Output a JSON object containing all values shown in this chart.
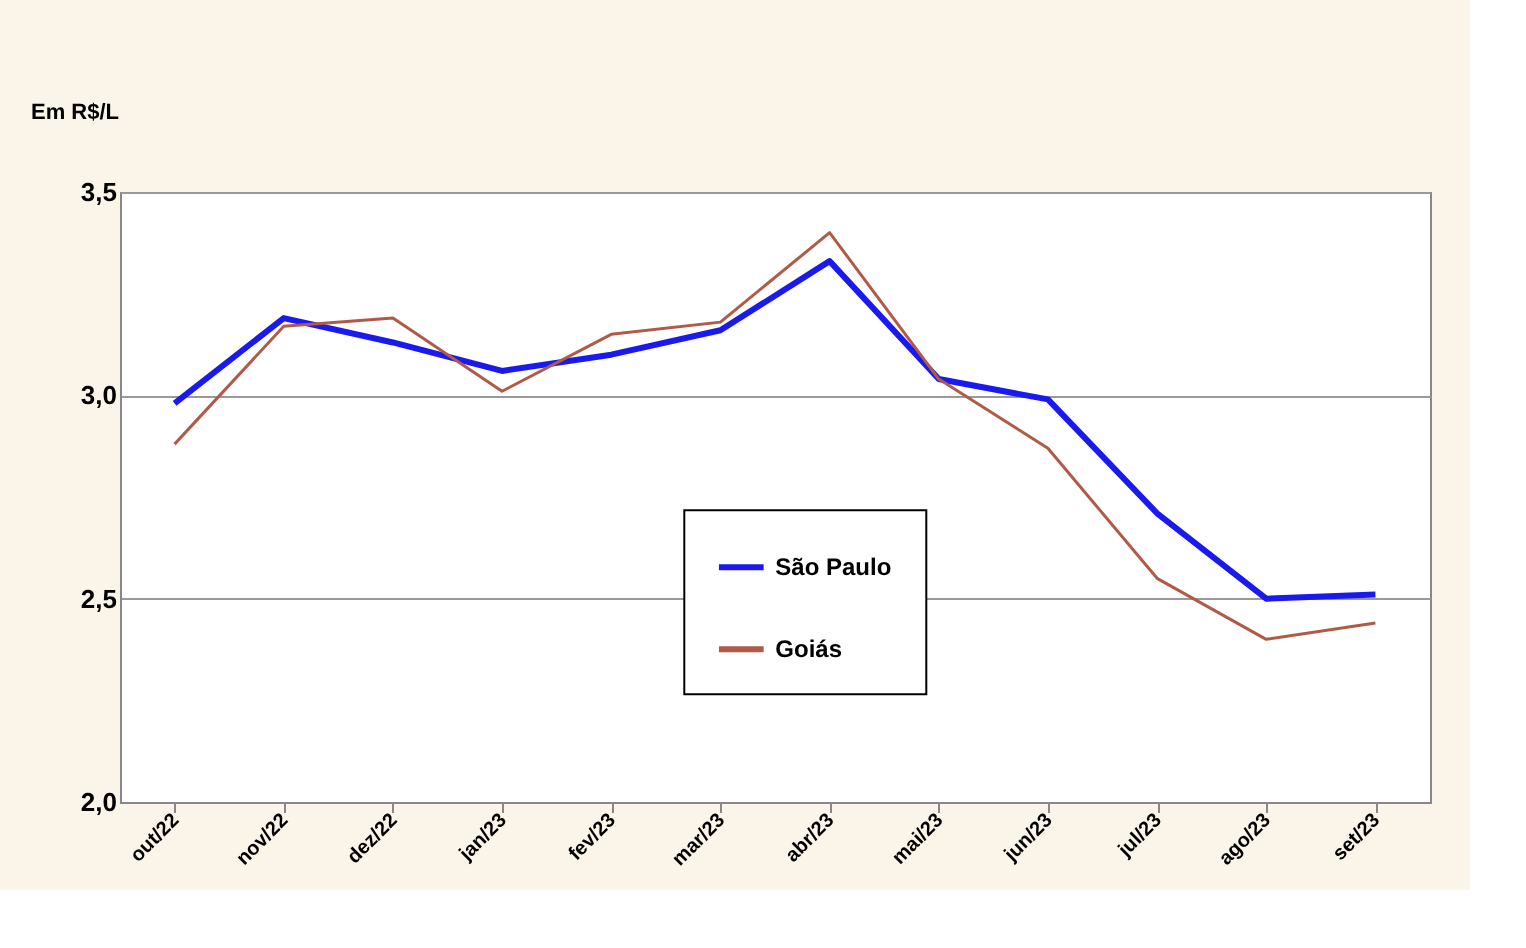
{
  "chart_data": {
    "type": "line",
    "ylabel": "Em R$/L",
    "categories": [
      "out/22",
      "nov/22",
      "dez/22",
      "jan/23",
      "fev/23",
      "mar/23",
      "abr/23",
      "mai/23",
      "jun/23",
      "jul/23",
      "ago/23",
      "set/23"
    ],
    "series": [
      {
        "name": "São Paulo",
        "color": "#1a1aee",
        "values": [
          2.98,
          3.19,
          3.13,
          3.06,
          3.1,
          3.16,
          3.33,
          3.04,
          2.99,
          2.71,
          2.5,
          2.51
        ]
      },
      {
        "name": "Goiás",
        "color": "#b05a48",
        "values": [
          2.88,
          3.17,
          3.19,
          3.01,
          3.15,
          3.18,
          3.4,
          3.04,
          2.87,
          2.55,
          2.4,
          2.44
        ]
      }
    ],
    "ylim": [
      2.0,
      3.5
    ],
    "yticks": [
      {
        "value": 2.0,
        "label": "2,0"
      },
      {
        "value": 2.5,
        "label": "2,5"
      },
      {
        "value": 3.0,
        "label": "3,0"
      },
      {
        "value": 3.5,
        "label": "3,5"
      }
    ],
    "grid": "y",
    "legend": "center",
    "marker": "none",
    "line_style": "solid"
  }
}
